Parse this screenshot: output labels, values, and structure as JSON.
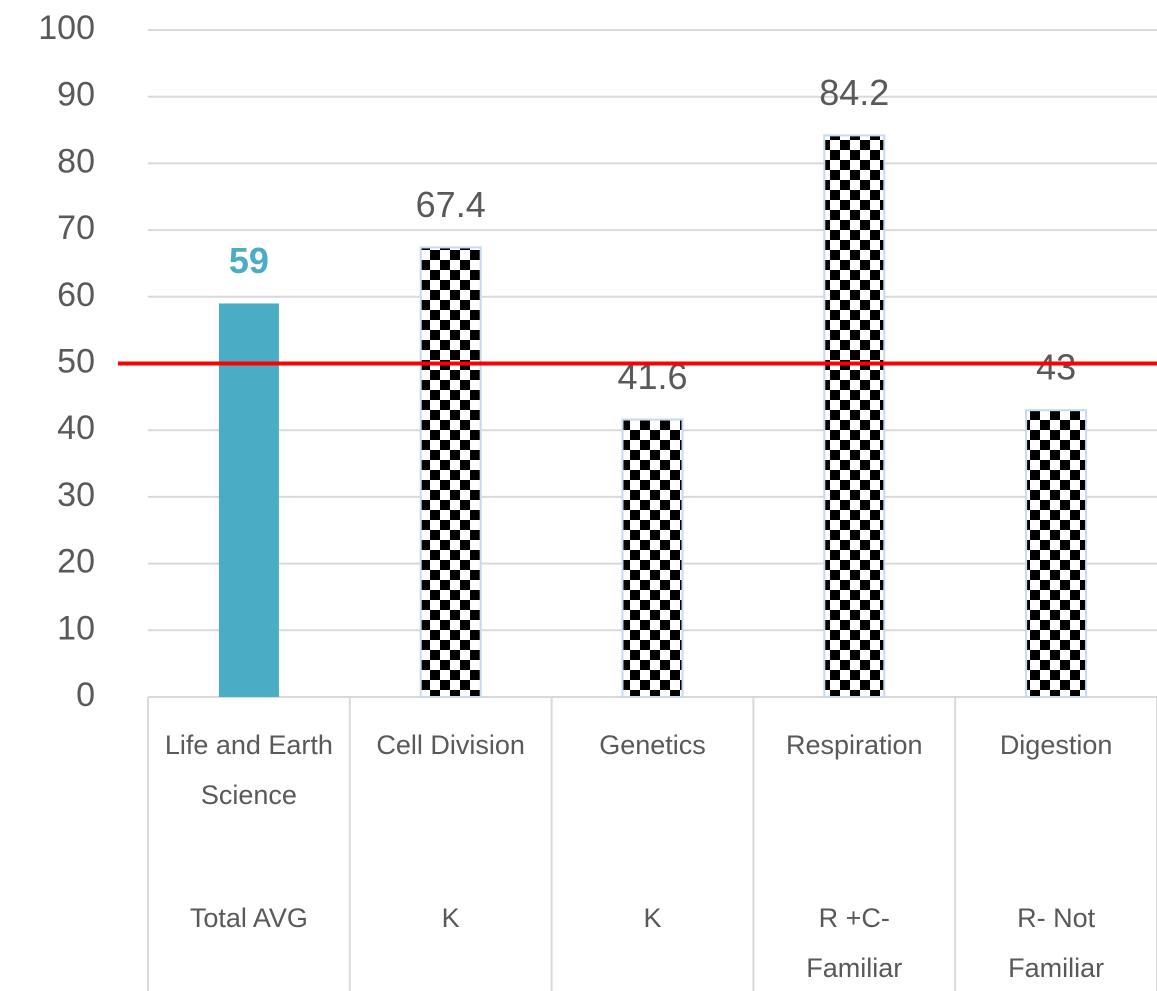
{
  "chart_data": {
    "type": "bar",
    "categories": [
      "Life and Earth Science",
      "Cell Division",
      "Genetics",
      "Respiration",
      "Digestion"
    ],
    "category_groups": [
      "Total AVG",
      "K",
      "K",
      "R +C- Familiar",
      "R- Not Familiar"
    ],
    "values": [
      59,
      67.4,
      41.6,
      84.2,
      43
    ],
    "colors": [
      "#4bacc6",
      "checkerboard",
      "checkerboard",
      "checkerboard",
      "checkerboard"
    ],
    "ylim": [
      0,
      100
    ],
    "yticks": [
      0,
      10,
      20,
      30,
      40,
      50,
      60,
      70,
      80,
      90,
      100
    ],
    "grid": true,
    "reference_line": {
      "value": 50,
      "color": "#ff0000"
    }
  }
}
